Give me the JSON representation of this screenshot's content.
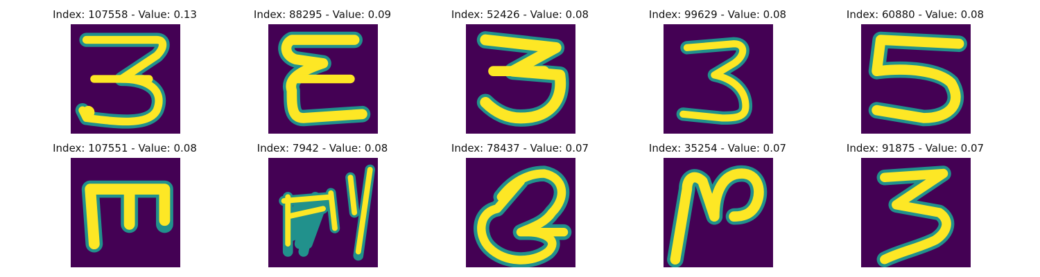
{
  "figure": {
    "panels": [
      {
        "index": "107558",
        "value": "0.13",
        "title": "Index: 107558 - Value: 0.13",
        "glyph": "digit-3-with-tail"
      },
      {
        "index": "88295",
        "value": "0.09",
        "title": "Index: 88295 - Value: 0.09",
        "glyph": "epsilon-like-3"
      },
      {
        "index": "52426",
        "value": "0.08",
        "title": "Index: 52426 - Value: 0.08",
        "glyph": "digit-3-bold"
      },
      {
        "index": "99629",
        "value": "0.08",
        "title": "Index: 99629 - Value: 0.08",
        "glyph": "digit-3"
      },
      {
        "index": "60880",
        "value": "0.08",
        "title": "Index: 60880 - Value: 0.08",
        "glyph": "digit-5"
      },
      {
        "index": "107551",
        "value": "0.08",
        "title": "Index: 107551 - Value: 0.08",
        "glyph": "letter-E-rotated"
      },
      {
        "index": "7942",
        "value": "0.08",
        "title": "Index: 7942 - Value: 0.08",
        "glyph": "scribble"
      },
      {
        "index": "78437",
        "value": "0.07",
        "title": "Index: 78437 - Value: 0.07",
        "glyph": "loop-shape"
      },
      {
        "index": "35254",
        "value": "0.07",
        "title": "Index: 35254 - Value: 0.07",
        "glyph": "letter-n-shape"
      },
      {
        "index": "91875",
        "value": "0.07",
        "title": "Index: 91875 - Value: 0.07",
        "glyph": "digit-3-angular"
      }
    ]
  },
  "colors": {
    "background": "#440154",
    "stroke_core": "#fde725",
    "stroke_edge": "#21918c"
  }
}
